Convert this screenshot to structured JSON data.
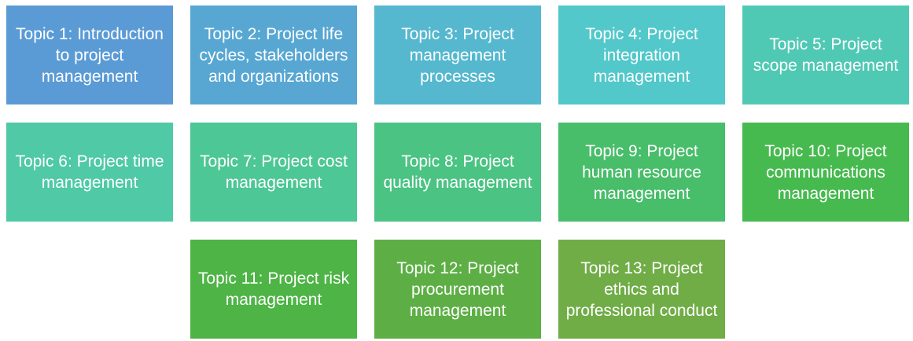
{
  "topics": [
    {
      "label": "Topic 1: Introduction to project management",
      "color": "#5B9BD5"
    },
    {
      "label": "Topic 2: Project life cycles, stakeholders and organizations",
      "color": "#58A7D3"
    },
    {
      "label": "Topic 3: Project management processes",
      "color": "#55B8CF"
    },
    {
      "label": "Topic 4: Project integration management",
      "color": "#52C8CA"
    },
    {
      "label": "Topic 5: Project scope management",
      "color": "#50C9B4"
    },
    {
      "label": "Topic 6: Project time management",
      "color": "#4FC9A6"
    },
    {
      "label": "Topic 7: Project cost management",
      "color": "#4DC795"
    },
    {
      "label": "Topic 8: Project quality management",
      "color": "#4AC383"
    },
    {
      "label": "Topic 9: Project human resource management",
      "color": "#48BD6A"
    },
    {
      "label": "Topic 10: Project communications management",
      "color": "#46BA4F"
    },
    {
      "label": "Topic 11: Project risk management",
      "color": "#4EB446"
    },
    {
      "label": "Topic 12: Project procurement management",
      "color": "#5DAF45"
    },
    {
      "label": "Topic 13: Project ethics and professional conduct",
      "color": "#70AD47"
    }
  ]
}
